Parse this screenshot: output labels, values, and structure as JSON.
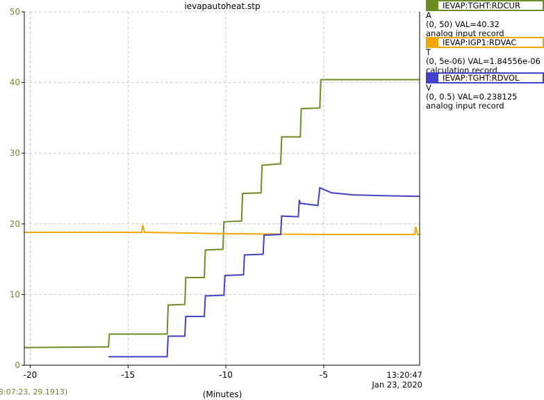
{
  "title": "ievapautoheat.stp",
  "cursor_readout": "3:07:23, 29.1913)",
  "x_unit_label": "(Minutes)",
  "timestamp": {
    "time": "13:20:47",
    "date": "Jan 23, 2020"
  },
  "legend": [
    {
      "channel": "IEVAP:TGHT:RDCUR",
      "unit": "A",
      "range_val": "(0, 50) VAL=40.32",
      "rtype": "analog input record",
      "color": "#6b8e23"
    },
    {
      "channel": "IEVAP:IGP1:RDVAC",
      "unit": "T",
      "range_val": "(0, 5e-06) VAL=1.84556e-06",
      "rtype": "calculation record",
      "color": "#f5a500"
    },
    {
      "channel": "IEVAP:TGHT:RDVOL",
      "unit": "V",
      "range_val": "(0, 0.5) VAL=0.238125",
      "rtype": "analog input record",
      "color": "#4040c8"
    }
  ],
  "chart_data": {
    "type": "line",
    "title": "ievapautoheat.stp",
    "xlabel": "(Minutes)",
    "ylabel": "",
    "xlim": [
      -20.3,
      -0.1
    ],
    "ylim": [
      0,
      50
    ],
    "x_ticks": [
      -20,
      -15,
      -10,
      -5
    ],
    "x_tick_labels": [
      "-20",
      "-15",
      "-10",
      "-5"
    ],
    "y_ticks": [
      0,
      10,
      20,
      30,
      40,
      50
    ],
    "y_tick_labels": [
      "0",
      "10",
      "20",
      "30",
      "40",
      "50"
    ],
    "grid": true,
    "series": [
      {
        "name": "IEVAP:TGHT:RDCUR",
        "color": "#6b8e23",
        "points": [
          [
            -20.3,
            2.5
          ],
          [
            -16.0,
            2.6
          ],
          [
            -15.95,
            4.4
          ],
          [
            -13.0,
            4.4
          ],
          [
            -12.95,
            8.5
          ],
          [
            -12.1,
            8.6
          ],
          [
            -12.05,
            12.4
          ],
          [
            -11.1,
            12.4
          ],
          [
            -11.05,
            16.3
          ],
          [
            -10.15,
            16.4
          ],
          [
            -10.1,
            20.3
          ],
          [
            -9.2,
            20.4
          ],
          [
            -9.15,
            24.3
          ],
          [
            -8.2,
            24.4
          ],
          [
            -8.15,
            28.3
          ],
          [
            -7.2,
            28.5
          ],
          [
            -7.15,
            32.3
          ],
          [
            -6.2,
            32.3
          ],
          [
            -6.15,
            36.3
          ],
          [
            -5.2,
            36.4
          ],
          [
            -5.15,
            40.4
          ],
          [
            -0.1,
            40.4
          ]
        ]
      },
      {
        "name": "IEVAP:IGP1:RDVAC",
        "color": "#f5a500",
        "points": [
          [
            -20.3,
            18.8
          ],
          [
            -14.3,
            18.8
          ],
          [
            -14.25,
            19.8
          ],
          [
            -14.15,
            18.8
          ],
          [
            -10.0,
            18.6
          ],
          [
            -5.0,
            18.5
          ],
          [
            -0.35,
            18.5
          ],
          [
            -0.3,
            19.6
          ],
          [
            -0.2,
            18.5
          ],
          [
            -0.1,
            18.5
          ]
        ]
      },
      {
        "name": "IEVAP:TGHT:RDVOL",
        "color": "#4040c8",
        "points": [
          [
            -16.0,
            1.2
          ],
          [
            -13.0,
            1.2
          ],
          [
            -12.95,
            4.1
          ],
          [
            -12.1,
            4.1
          ],
          [
            -12.05,
            6.9
          ],
          [
            -11.1,
            6.9
          ],
          [
            -11.05,
            9.8
          ],
          [
            -10.1,
            9.9
          ],
          [
            -10.05,
            12.7
          ],
          [
            -9.1,
            12.8
          ],
          [
            -9.05,
            15.6
          ],
          [
            -8.1,
            15.7
          ],
          [
            -8.05,
            18.4
          ],
          [
            -7.2,
            18.5
          ],
          [
            -7.15,
            21.1
          ],
          [
            -6.3,
            21.0
          ],
          [
            -6.25,
            23.4
          ],
          [
            -6.2,
            22.9
          ],
          [
            -5.3,
            22.6
          ],
          [
            -5.2,
            25.1
          ],
          [
            -4.6,
            24.4
          ],
          [
            -3.5,
            24.1
          ],
          [
            -2.0,
            24.0
          ],
          [
            -0.1,
            23.9
          ]
        ]
      }
    ]
  }
}
